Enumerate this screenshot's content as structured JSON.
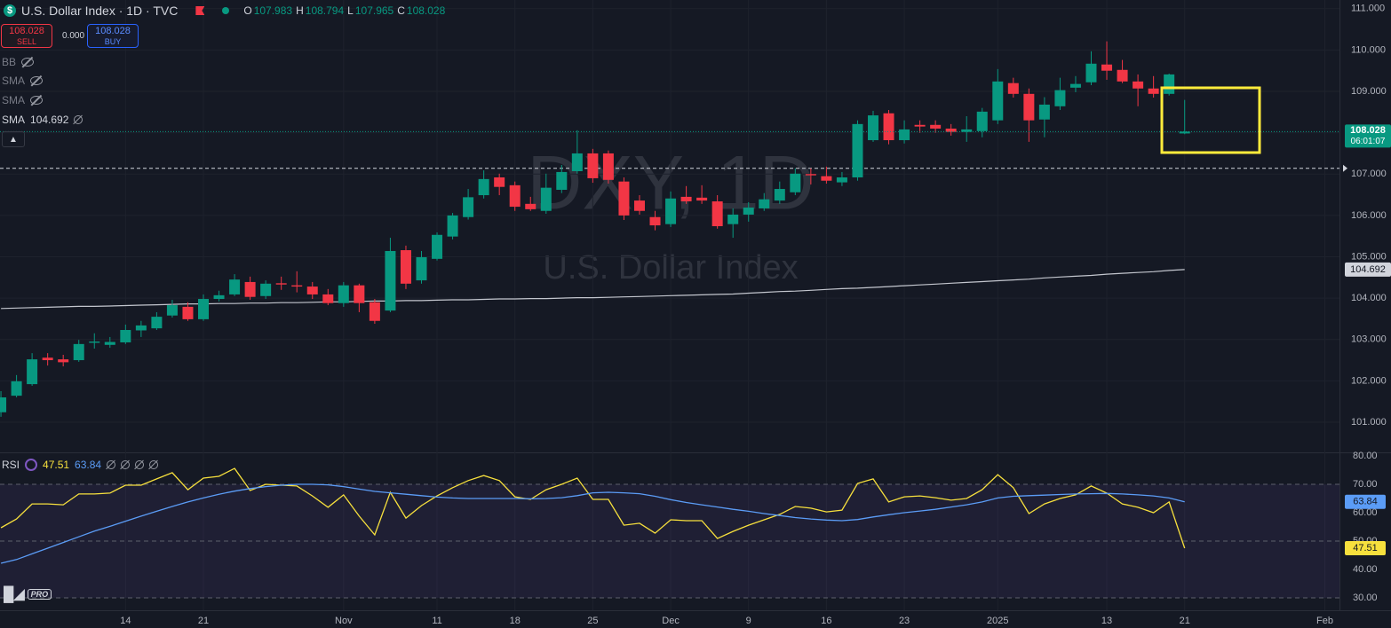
{
  "header": {
    "symbol": "U.S. Dollar Index · 1D · TVC",
    "ohlc_labels": [
      "O",
      "H",
      "L",
      "C"
    ]
  },
  "trade": {
    "sell_label": "SELL",
    "spread": "0.000",
    "buy_label": "BUY"
  },
  "indicators": [
    "BB",
    "SMA",
    "SMA",
    "SMA"
  ],
  "watermark": {
    "symbol": "DXY, 1D",
    "name": "U.S. Dollar Index"
  },
  "countdown": "06:01:07",
  "logo_badge": "PRO",
  "chart_data": [
    {
      "type": "candlestick",
      "up_color": "#089981",
      "down_color": "#f23645",
      "xlim": [
        -0.06,
        85.94
      ],
      "xticks": [
        {
          "value": 8,
          "label": "14"
        },
        {
          "value": 13,
          "label": "21"
        },
        {
          "value": 22,
          "label": "Nov"
        },
        {
          "value": 28,
          "label": "11"
        },
        {
          "value": 33,
          "label": "18"
        },
        {
          "value": 38,
          "label": "25"
        },
        {
          "value": 43,
          "label": "Dec"
        },
        {
          "value": 48,
          "label": "9"
        },
        {
          "value": 53,
          "label": "16"
        },
        {
          "value": 58,
          "label": "23"
        },
        {
          "value": 64,
          "label": "2025"
        },
        {
          "value": 71,
          "label": "13"
        },
        {
          "value": 76,
          "label": "21"
        },
        {
          "value": 85,
          "label": "Feb"
        }
      ],
      "ylim": [
        100.27,
        111.21
      ],
      "yticks": [
        {
          "value": 101,
          "label": "101.000"
        },
        {
          "value": 102,
          "label": "102.000"
        },
        {
          "value": 103,
          "label": "103.000"
        },
        {
          "value": 104,
          "label": "104.000"
        },
        {
          "value": 105,
          "label": "105.000"
        },
        {
          "value": 106,
          "label": "106.000"
        },
        {
          "value": 107,
          "label": "107.000"
        },
        {
          "value": 108,
          "label": "108.000"
        },
        {
          "value": 109,
          "label": "109.000"
        },
        {
          "value": 110,
          "label": "110.000"
        },
        {
          "value": 111,
          "label": "111.000"
        }
      ],
      "grid": true,
      "price_line": 107.14,
      "open": [
        101.24,
        101.64,
        101.92,
        102.56,
        102.52,
        102.5,
        102.92,
        102.87,
        102.93,
        103.22,
        103.27,
        103.58,
        103.79,
        103.49,
        103.98,
        104.09,
        104.39,
        104.05,
        104.36,
        104.31,
        104.28,
        104.09,
        103.88,
        104.31,
        103.9,
        103.7,
        105.16,
        104.43,
        104.95,
        105.49,
        105.96,
        106.49,
        106.92,
        106.73,
        106.28,
        106.11,
        106.62,
        107.07,
        107.5,
        107.5,
        106.82,
        106.36,
        105.96,
        105.79,
        106.45,
        106.43,
        106.34,
        105.79,
        106.02,
        106.17,
        106.36,
        106.56,
        107.0,
        106.95,
        106.8,
        106.92,
        107.82,
        108.47,
        107.82,
        108.19,
        108.19,
        108.1,
        108.02,
        108.04,
        108.3,
        109.2,
        108.94,
        108.32,
        108.64,
        109.09,
        109.22,
        109.65,
        109.52,
        109.24,
        109.07,
        108.94,
        107.983
      ],
      "high": [
        101.75,
        102.14,
        102.67,
        102.67,
        102.63,
        102.99,
        103.15,
        103.06,
        103.36,
        103.45,
        103.66,
        103.96,
        103.9,
        104.09,
        104.18,
        104.58,
        104.52,
        104.43,
        104.52,
        104.65,
        104.39,
        104.22,
        104.39,
        104.35,
        103.98,
        105.46,
        105.27,
        105.14,
        105.59,
        106.06,
        106.64,
        107.09,
        107.01,
        106.82,
        106.45,
        107.01,
        107.22,
        108.06,
        107.61,
        107.57,
        106.92,
        106.49,
        106.11,
        106.58,
        106.71,
        106.73,
        106.49,
        106.17,
        106.32,
        106.54,
        106.82,
        107.14,
        107.14,
        107.18,
        107.05,
        108.3,
        108.53,
        108.55,
        108.3,
        108.3,
        108.3,
        108.21,
        108.4,
        108.6,
        109.54,
        109.33,
        109.07,
        108.86,
        109.33,
        109.37,
        109.97,
        110.21,
        109.76,
        109.41,
        109.37,
        109.43,
        108.794
      ],
      "low": [
        101.13,
        101.6,
        101.88,
        102.37,
        102.35,
        102.46,
        102.78,
        102.8,
        102.89,
        103.06,
        103.23,
        103.53,
        103.45,
        103.45,
        103.92,
        104.05,
        103.96,
        103.98,
        104.2,
        104.14,
        103.98,
        103.83,
        103.79,
        103.66,
        103.38,
        103.66,
        104.22,
        104.35,
        104.91,
        105.42,
        105.9,
        106.41,
        106.49,
        106.11,
        106.11,
        106.04,
        106.54,
        107.01,
        106.79,
        106.77,
        105.89,
        106.02,
        105.64,
        105.72,
        106.28,
        106.28,
        105.68,
        105.46,
        105.85,
        106.11,
        106.28,
        106.49,
        106.75,
        106.77,
        106.71,
        106.84,
        107.78,
        107.72,
        107.74,
        108.0,
        108.0,
        107.93,
        107.78,
        107.89,
        108.21,
        108.85,
        107.78,
        107.89,
        108.55,
        108.98,
        109.15,
        109.28,
        109.2,
        108.64,
        108.85,
        108.9,
        107.965
      ],
      "close": [
        101.6,
        101.99,
        102.52,
        102.5,
        102.45,
        102.89,
        102.95,
        102.94,
        103.23,
        103.34,
        103.55,
        103.83,
        103.49,
        103.98,
        104.07,
        104.45,
        104.03,
        104.35,
        104.33,
        104.28,
        104.09,
        103.88,
        104.31,
        103.88,
        103.45,
        105.14,
        104.35,
        104.99,
        105.53,
        106.0,
        106.44,
        106.88,
        106.69,
        106.21,
        106.15,
        106.67,
        107.05,
        107.5,
        106.9,
        106.86,
        106.0,
        106.11,
        105.76,
        106.41,
        106.34,
        106.36,
        105.74,
        106.02,
        106.19,
        106.39,
        106.64,
        107.01,
        106.97,
        106.84,
        106.92,
        108.21,
        108.42,
        107.82,
        108.08,
        108.15,
        108.1,
        108.02,
        108.08,
        108.51,
        109.24,
        108.94,
        108.3,
        108.68,
        109.03,
        109.18,
        109.67,
        109.5,
        109.24,
        109.07,
        108.94,
        109.41,
        108.028
      ],
      "sma": {
        "color": "#c3c6ce",
        "values": [
          103.75,
          103.76,
          103.77,
          103.78,
          103.79,
          103.8,
          103.8,
          103.81,
          103.82,
          103.83,
          103.84,
          103.85,
          103.86,
          103.86,
          103.87,
          103.87,
          103.88,
          103.88,
          103.89,
          103.89,
          103.9,
          103.91,
          103.91,
          103.92,
          103.93,
          103.93,
          103.94,
          103.94,
          103.95,
          103.96,
          103.96,
          103.97,
          103.98,
          103.98,
          103.99,
          103.99,
          104.0,
          104.01,
          104.01,
          104.02,
          104.03,
          104.04,
          104.05,
          104.06,
          104.07,
          104.08,
          104.09,
          104.1,
          104.12,
          104.14,
          104.16,
          104.17,
          104.19,
          104.21,
          104.23,
          104.24,
          104.26,
          104.28,
          104.3,
          104.32,
          104.34,
          104.36,
          104.38,
          104.4,
          104.42,
          104.44,
          104.46,
          104.49,
          104.51,
          104.53,
          104.55,
          104.58,
          104.6,
          104.62,
          104.64,
          104.67,
          104.692
        ]
      }
    },
    {
      "type": "line",
      "title": "RSI",
      "ylim": [
        25.63,
        80.94
      ],
      "yticks": [
        {
          "value": 30,
          "label": "30.00"
        },
        {
          "value": 40,
          "label": "40.00"
        },
        {
          "value": 50,
          "label": "50.00"
        },
        {
          "value": 60,
          "label": "60.00"
        },
        {
          "value": 70,
          "label": "70.00"
        },
        {
          "value": 80,
          "label": "80.00"
        }
      ],
      "levels": [
        70,
        50,
        30
      ],
      "band_color": "rgba(126,87,194,0.10)",
      "series": [
        {
          "color": "#f7e03d",
          "values": [
            54.7,
            57.8,
            63.1,
            63.1,
            62.8,
            66.6,
            66.6,
            66.9,
            69.7,
            69.7,
            71.9,
            74.1,
            68.1,
            72.2,
            72.8,
            75.6,
            67.8,
            70.0,
            69.7,
            69.4,
            65.9,
            61.9,
            66.3,
            58.8,
            52.2,
            67.2,
            58.1,
            62.5,
            65.9,
            68.8,
            71.3,
            73.1,
            71.3,
            65.6,
            64.7,
            68.1,
            70.0,
            72.2,
            64.7,
            64.7,
            55.6,
            56.3,
            52.8,
            57.5,
            57.2,
            57.2,
            50.9,
            53.4,
            55.6,
            57.5,
            59.4,
            62.2,
            61.6,
            60.3,
            60.9,
            70.3,
            71.9,
            63.8,
            65.6,
            65.9,
            65.3,
            64.4,
            65.0,
            68.1,
            73.4,
            68.8,
            59.7,
            63.1,
            65.0,
            66.3,
            69.4,
            66.9,
            63.1,
            61.9,
            60.0,
            63.8,
            47.51
          ]
        },
        {
          "color": "#5b9cf6",
          "values": [
            42.2,
            43.5,
            45.5,
            47.5,
            49.5,
            51.5,
            53.5,
            55.2,
            57.0,
            58.8,
            60.5,
            62.2,
            63.8,
            65.2,
            66.5,
            67.6,
            68.5,
            69.2,
            69.7,
            70.0,
            70.0,
            69.8,
            69.2,
            68.3,
            67.5,
            67.0,
            66.5,
            66.0,
            65.5,
            65.2,
            65.0,
            65.0,
            65.0,
            65.0,
            64.9,
            65.0,
            65.3,
            66.0,
            67.0,
            67.2,
            67.0,
            66.7,
            65.8,
            64.6,
            63.6,
            62.8,
            62.0,
            61.2,
            60.5,
            59.7,
            59.0,
            58.3,
            57.8,
            57.4,
            57.2,
            57.6,
            58.5,
            59.3,
            60.0,
            60.6,
            61.2,
            62.0,
            62.8,
            63.8,
            65.2,
            65.8,
            66.0,
            66.2,
            66.4,
            66.6,
            66.7,
            66.8,
            66.6,
            66.3,
            65.9,
            65.2,
            63.84
          ]
        }
      ]
    }
  ]
}
